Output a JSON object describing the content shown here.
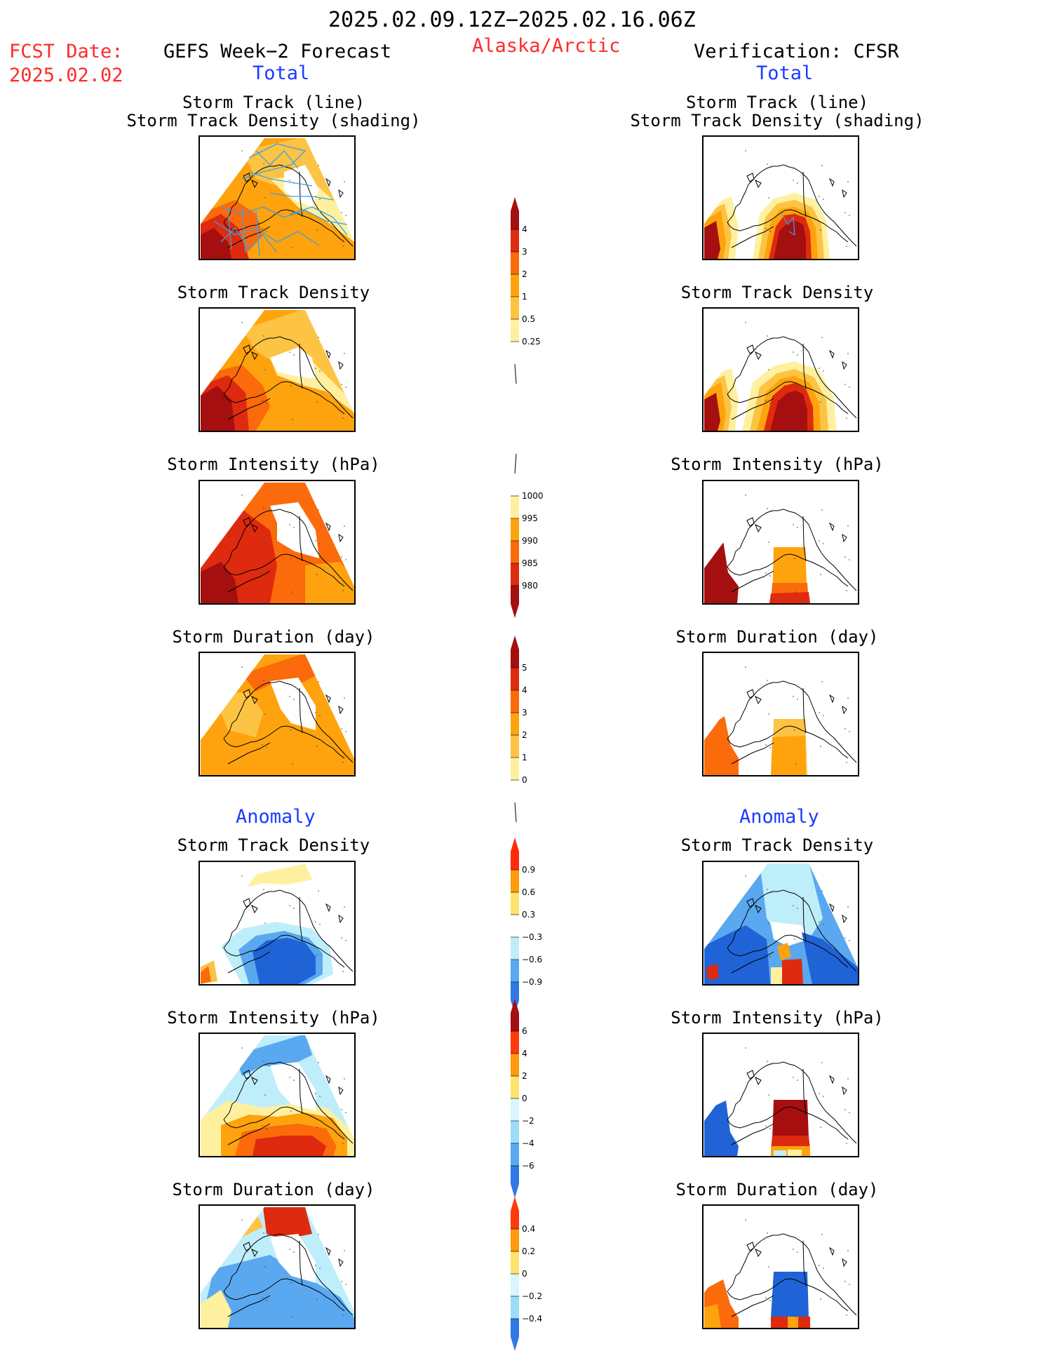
{
  "header": {
    "date_range": "2025.02.09.12Z−2025.02.16.06Z",
    "fcst_label": "FCST Date:",
    "fcst_date": "2025.02.02",
    "left_title": "GEFS Week−2 Forecast",
    "region": "Alaska/Arctic",
    "right_title": "Verification: CFSR"
  },
  "sections": {
    "total": "Total",
    "anomaly": "Anomaly"
  },
  "panel_titles": {
    "track_line": "Storm Track (line)",
    "track_shading": "Storm Track Density (shading)",
    "density": "Storm Track Density",
    "intensity": "Storm Intensity (hPa)",
    "duration": "Storm Duration (day)"
  },
  "colorbars": {
    "density": {
      "labels": [
        "4",
        "3",
        "2",
        "1",
        "0.5",
        "0.25"
      ],
      "colors": [
        "#a50f0f",
        "#de2a0e",
        "#fb6a0b",
        "#fea30d",
        "#fdc343",
        "#fff0a0",
        "#ffffff"
      ]
    },
    "intensity": {
      "labels": [
        "1000",
        "995",
        "990",
        "985",
        "980"
      ],
      "colors": [
        "#ffffff",
        "#fff0a0",
        "#fea30d",
        "#fb6a0b",
        "#de2a0e",
        "#a50f0f"
      ]
    },
    "duration": {
      "labels": [
        "5",
        "4",
        "3",
        "2",
        "1",
        "0"
      ],
      "colors": [
        "#a50f0f",
        "#de2a0e",
        "#fb6a0b",
        "#fea30d",
        "#fdc343",
        "#fff0a0",
        "#ffffff"
      ]
    },
    "density_anom": {
      "labels": [
        "0.9",
        "0.6",
        "0.3",
        "−0.3",
        "−0.6",
        "−0.9"
      ],
      "colors": [
        "#ff2a0a",
        "#fe9a0b",
        "#fde36c",
        "#ffffff",
        "#bfeefb",
        "#5aa8f0",
        "#2f78e6"
      ]
    },
    "intensity_anom": {
      "labels": [
        "6",
        "4",
        "2",
        "0",
        "−2",
        "−4",
        "−6"
      ],
      "colors": [
        "#a50f0f",
        "#ff3a0a",
        "#fe9a0b",
        "#fde36c",
        "#d8f6fe",
        "#9bdcf8",
        "#5aa8f0",
        "#2f78e6"
      ]
    },
    "duration_anom": {
      "labels": [
        "0.4",
        "0.2",
        "0",
        "−0.2",
        "−0.4"
      ],
      "colors": [
        "#ff3a0a",
        "#fe9a0b",
        "#fde36c",
        "#d8f6fe",
        "#9bdcf8",
        "#2f78e6"
      ]
    }
  },
  "palette": {
    "white": "#ffffff",
    "pale_yellow": "#fff0a0",
    "light_orange": "#fdc343",
    "orange": "#fea30d",
    "dark_orange": "#fb6a0b",
    "red": "#de2a0e",
    "dark_red": "#a50f0f",
    "light_blue": "#bfeefb",
    "mid_blue": "#5aa8f0",
    "dark_blue": "#1f63d6",
    "track_line": "#3aa0e8"
  }
}
